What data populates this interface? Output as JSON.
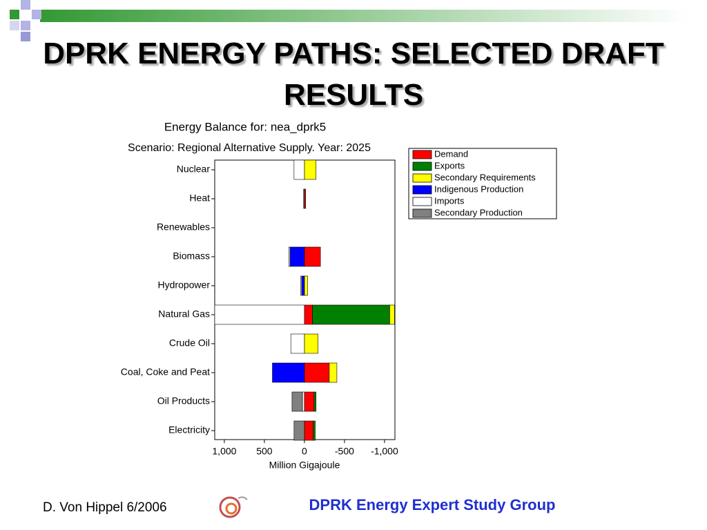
{
  "slide": {
    "title": "DPRK ENERGY PATHS: SELECTED DRAFT RESULTS",
    "author_date": "D. Von Hippel  6/2006",
    "group": "DPRK Energy Expert Study Group"
  },
  "chart_data": {
    "type": "stacked-bar-horizontal",
    "title": "Energy Balance for: nea_dprk5",
    "subtitle": "Scenario: Regional Alternative Supply. Year: 2025",
    "x_label": "Million Gigajoule",
    "categories": [
      "Nuclear",
      "Heat",
      "Renewables",
      "Biomass",
      "Hydropower",
      "Natural Gas",
      "Crude Oil",
      "Coal, Coke and Peat",
      "Oil Products",
      "Electricity"
    ],
    "series": [
      {
        "name": "Demand",
        "color": "#ff0000",
        "values": [
          0,
          -15,
          0,
          -200,
          0,
          -100,
          0,
          -310,
          -120,
          -110
        ]
      },
      {
        "name": "Exports",
        "color": "#008000",
        "values": [
          0,
          0,
          0,
          0,
          0,
          -965,
          0,
          0,
          -25,
          -25
        ]
      },
      {
        "name": "Secondary Requirements",
        "color": "#ffff00",
        "values": [
          -145,
          0,
          0,
          0,
          -40,
          -60,
          -170,
          -95,
          0,
          0
        ]
      },
      {
        "name": "Indigenous Production",
        "color": "#0000ff",
        "values": [
          0,
          0,
          0,
          180,
          35,
          0,
          0,
          400,
          0,
          0
        ]
      },
      {
        "name": "Imports",
        "color": "#ffffff",
        "values": [
          130,
          0,
          0,
          15,
          10,
          1120,
          170,
          0,
          25,
          0
        ]
      },
      {
        "name": "Secondary Production",
        "color": "#808080",
        "values": [
          0,
          10,
          0,
          0,
          0,
          0,
          0,
          0,
          130,
          130
        ]
      }
    ],
    "xlim": [
      1120,
      -1130
    ],
    "xticks": [
      {
        "value": 1000,
        "label": "1,000"
      },
      500,
      0,
      -500,
      {
        "value": -1000,
        "label": "-1,000"
      }
    ]
  }
}
